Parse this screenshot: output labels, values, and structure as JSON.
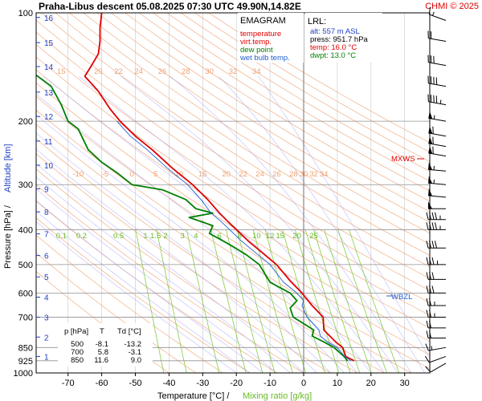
{
  "header": {
    "title": "Praha-Libus   descent   05.08.2025 07:30 UTC  49.90N,14.82E",
    "brand": "CHMI © 2025"
  },
  "colors": {
    "temperature": "#e00000",
    "virt_temp": "#e00000",
    "dew_point": "#008000",
    "wet_bulb": "#2060d0",
    "isotherm": "#c8c8c8",
    "dry_adiabat": "#f0a070",
    "moist_adiabat": "#a0a0ff",
    "mixing_ratio": "#88cc44",
    "pressure_grid": "#909090",
    "altitude": "#2040c0",
    "mixing_label": "#66bb22",
    "adiabat_label": "#f0a070"
  },
  "legend": {
    "title": "EMAGRAM",
    "items": [
      {
        "label": "temperature",
        "color": "#e00000"
      },
      {
        "label": "virt.temp.",
        "color": "#e00000"
      },
      {
        "label": "dew point",
        "color": "#008000"
      },
      {
        "label": "wet bulb temp.",
        "color": "#2060d0"
      }
    ]
  },
  "lrl": {
    "title": "LRL:",
    "lines": [
      {
        "text": "alt: 557 m ASL",
        "color": "#2040c0"
      },
      {
        "text": "press: 951.7 hPa",
        "color": "#000000"
      },
      {
        "text": "temp: 16.0 °C",
        "color": "#e00000"
      },
      {
        "text": "dwpt: 13.0 °C",
        "color": "#008000"
      }
    ]
  },
  "markers": {
    "mxws": "MXWS",
    "wbzl": "WBZL"
  },
  "axes": {
    "xlabel": "Temperature [°C]  /",
    "xlabel2": "Mixing ratio [g/kg]",
    "ylabel": "Pressure [hPa]  /",
    "ylabel2": "Altitude [km]"
  },
  "table": {
    "headers": [
      "p [hPa]",
      "T",
      "Td [°C]"
    ],
    "rows": [
      [
        "500",
        "-8.1",
        "-13.2"
      ],
      [
        "700",
        "5.8",
        "-3.1"
      ],
      [
        "850",
        "11.6",
        "9.0"
      ]
    ]
  },
  "chart_data": {
    "type": "line",
    "title": "Praha-Libus   descent   05.08.2025 07:30 UTC  49.90N,14.82E",
    "xlabel": "Temperature [°C] / Mixing ratio [g/kg]",
    "ylabel": "Pressure [hPa] / Altitude [km]",
    "xlim": [
      -80,
      40
    ],
    "ylim": [
      1000,
      100
    ],
    "y_scale": "log",
    "grid": true,
    "x_ticks": [
      -70,
      -60,
      -50,
      -40,
      -30,
      -20,
      -10,
      0,
      10,
      20,
      30
    ],
    "y_ticks": [
      100,
      200,
      300,
      400,
      500,
      600,
      700,
      850,
      925,
      1000
    ],
    "altitude_ticks": [
      {
        "km": 1,
        "p": 900
      },
      {
        "km": 2,
        "p": 795
      },
      {
        "km": 3,
        "p": 700
      },
      {
        "km": 4,
        "p": 616
      },
      {
        "km": 5,
        "p": 541
      },
      {
        "km": 6,
        "p": 472
      },
      {
        "km": 7,
        "p": 411
      },
      {
        "km": 8,
        "p": 357
      },
      {
        "km": 9,
        "p": 308
      },
      {
        "km": 10,
        "p": 265
      },
      {
        "km": 11,
        "p": 227
      },
      {
        "km": 12,
        "p": 194
      },
      {
        "km": 13,
        "p": 166
      },
      {
        "km": 14,
        "p": 141
      },
      {
        "km": 15,
        "p": 121
      },
      {
        "km": 16,
        "p": 103
      }
    ],
    "mixing_ratio_labels": [
      "0.1",
      "0.2",
      "0.5",
      "1",
      "1.5",
      "2",
      "3",
      "4",
      "6",
      "8",
      "10",
      "12",
      "15",
      "20",
      "25"
    ],
    "mixing_ratio_label_x": [
      -72,
      -66,
      -55,
      -47,
      -44,
      -41,
      -36,
      -32,
      -25,
      -19,
      -14,
      -10,
      -7,
      -2,
      3
    ],
    "dry_adiabat_labels_200": [
      "15",
      "20",
      "22",
      "24",
      "26",
      "28",
      "30",
      "32",
      "34"
    ],
    "dry_adiabat_labels_200_x": [
      -72,
      -61,
      -55,
      -49,
      -42,
      -35,
      -28,
      -21,
      -14
    ],
    "moist_adiabat_labels_390": [
      "-10",
      "-5",
      "0",
      "5",
      "10",
      "15",
      "20",
      "22",
      "24",
      "26",
      "28",
      "30",
      "32",
      "34"
    ],
    "moist_adiabat_labels_390_x": [
      -67,
      -59,
      -51,
      -44,
      -37,
      -30,
      -23,
      -18,
      -13,
      -8,
      -3,
      0,
      3,
      6
    ],
    "series": [
      {
        "name": "temperature",
        "points": [
          [
            15.0,
            925
          ],
          [
            12.5,
            900
          ],
          [
            11.6,
            850
          ],
          [
            9.5,
            820
          ],
          [
            6.0,
            760
          ],
          [
            5.8,
            700
          ],
          [
            2.5,
            650
          ],
          [
            -0.5,
            600
          ],
          [
            -4.0,
            555
          ],
          [
            -8.1,
            500
          ],
          [
            -11.5,
            470
          ],
          [
            -16.5,
            430
          ],
          [
            -20.0,
            400
          ],
          [
            -22.5,
            380
          ],
          [
            -25.0,
            360
          ],
          [
            -28.5,
            330
          ],
          [
            -33.0,
            300
          ],
          [
            -39.0,
            270
          ],
          [
            -45.0,
            240
          ],
          [
            -50.0,
            220
          ],
          [
            -54.5,
            200
          ],
          [
            -57.5,
            185
          ],
          [
            -61.0,
            165
          ],
          [
            -65.0,
            150
          ],
          [
            -63.0,
            140
          ],
          [
            -61.0,
            130
          ],
          [
            -60.5,
            120
          ],
          [
            -60.5,
            110
          ],
          [
            -60.0,
            100
          ]
        ]
      },
      {
        "name": "dew point",
        "points": [
          [
            13.0,
            925
          ],
          [
            12.0,
            900
          ],
          [
            9.0,
            850
          ],
          [
            6.0,
            820
          ],
          [
            2.5,
            790
          ],
          [
            3.0,
            760
          ],
          [
            -3.1,
            700
          ],
          [
            -4.0,
            660
          ],
          [
            -2.0,
            630
          ],
          [
            -4.0,
            600
          ],
          [
            -10.0,
            560
          ],
          [
            -13.2,
            500
          ],
          [
            -17.0,
            470
          ],
          [
            -22.0,
            440
          ],
          [
            -28.0,
            410
          ],
          [
            -27.0,
            390
          ],
          [
            -34.0,
            370
          ],
          [
            -27.0,
            360
          ],
          [
            -32.0,
            350
          ],
          [
            -35.0,
            330
          ],
          [
            -42.0,
            310
          ],
          [
            -51.0,
            300
          ],
          [
            -55.0,
            280
          ],
          [
            -60.0,
            260
          ],
          [
            -64.0,
            240
          ],
          [
            -67.0,
            210
          ],
          [
            -70.0,
            200
          ],
          [
            -72.0,
            180
          ],
          [
            -75.0,
            160
          ],
          [
            -79.0,
            150
          ],
          [
            -84.0,
            140
          ]
        ]
      },
      {
        "name": "wet bulb temp.",
        "points": [
          [
            14.0,
            925
          ],
          [
            12.2,
            900
          ],
          [
            10.0,
            850
          ],
          [
            7.0,
            820
          ],
          [
            5.0,
            790
          ],
          [
            4.5,
            760
          ],
          [
            1.0,
            700
          ],
          [
            -0.5,
            650
          ],
          [
            0.0,
            630
          ],
          [
            -2.0,
            600
          ],
          [
            -6.0,
            560
          ],
          [
            -10.0,
            500
          ],
          [
            -13.5,
            470
          ],
          [
            -18.5,
            430
          ],
          [
            -22.0,
            400
          ],
          [
            -24.5,
            380
          ],
          [
            -27.5,
            360
          ],
          [
            -30.5,
            330
          ],
          [
            -34.5,
            300
          ],
          [
            -40.5,
            270
          ],
          [
            -46.5,
            240
          ],
          [
            -51.5,
            220
          ],
          [
            -55.5,
            200
          ]
        ]
      }
    ],
    "wind_barbs": [
      {
        "p": 940,
        "dir": 240,
        "kt": 10
      },
      {
        "p": 900,
        "dir": 250,
        "kt": 10
      },
      {
        "p": 850,
        "dir": 260,
        "kt": 15
      },
      {
        "p": 800,
        "dir": 270,
        "kt": 20
      },
      {
        "p": 750,
        "dir": 270,
        "kt": 20
      },
      {
        "p": 700,
        "dir": 270,
        "kt": 25
      },
      {
        "p": 650,
        "dir": 270,
        "kt": 25
      },
      {
        "p": 600,
        "dir": 270,
        "kt": 30
      },
      {
        "p": 550,
        "dir": 270,
        "kt": 30
      },
      {
        "p": 500,
        "dir": 270,
        "kt": 35
      },
      {
        "p": 450,
        "dir": 270,
        "kt": 40
      },
      {
        "p": 400,
        "dir": 270,
        "kt": 45
      },
      {
        "p": 375,
        "dir": 270,
        "kt": 45
      },
      {
        "p": 350,
        "dir": 270,
        "kt": 50
      },
      {
        "p": 325,
        "dir": 275,
        "kt": 50
      },
      {
        "p": 300,
        "dir": 275,
        "kt": 55
      },
      {
        "p": 275,
        "dir": 275,
        "kt": 55
      },
      {
        "p": 250,
        "dir": 280,
        "kt": 60
      },
      {
        "p": 235,
        "dir": 280,
        "kt": 60
      },
      {
        "p": 220,
        "dir": 280,
        "kt": 60
      },
      {
        "p": 200,
        "dir": 280,
        "kt": 55
      },
      {
        "p": 180,
        "dir": 280,
        "kt": 45
      },
      {
        "p": 160,
        "dir": 280,
        "kt": 40
      },
      {
        "p": 140,
        "dir": 280,
        "kt": 30
      },
      {
        "p": 120,
        "dir": 280,
        "kt": 20
      },
      {
        "p": 105,
        "dir": 290,
        "kt": 15
      }
    ]
  }
}
